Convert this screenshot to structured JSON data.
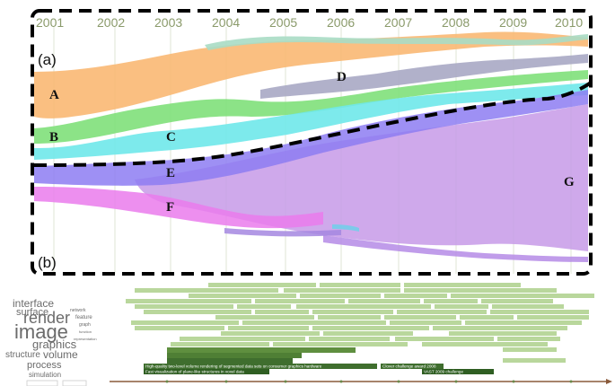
{
  "timeline": {
    "years": [
      "2001",
      "2002",
      "2003",
      "2004",
      "2005",
      "2006",
      "2007",
      "2008",
      "2009",
      "2010"
    ]
  },
  "panels": {
    "top": "(a)",
    "bottom": "(b)"
  },
  "flows": [
    {
      "label": "A",
      "color": "#f9b873"
    },
    {
      "label": "B",
      "color": "#7fe07a"
    },
    {
      "label": "C",
      "color": "#6fe8ea"
    },
    {
      "label": "D",
      "color": "#a8a9c4"
    },
    {
      "label": "E",
      "color": "#8d7cf2"
    },
    {
      "label": "F",
      "color": "#ea7bec"
    },
    {
      "label": "G",
      "color": "#c79ae8"
    }
  ],
  "word_cloud": {
    "words": [
      "interface",
      "render",
      "image",
      "surface",
      "graphics",
      "structure",
      "volume",
      "process",
      "simulation",
      "feature",
      "network",
      "graph",
      "representation",
      "function"
    ]
  },
  "documents": {
    "highlighted": [
      "High-quality two-level volume rendering of segmented data sets on consumer graphics hardware",
      "Fast visualization of plane-like structures in voxel data",
      "Clover challenge award 2008",
      "VAST 2009 challenge"
    ]
  },
  "colors": {
    "dashed_border": "#000000",
    "year_text": "#8a9a6a",
    "doc_box": "#9cc27a",
    "doc_box_dark": "#3f6e2e",
    "axis": "#8a5a3a"
  }
}
